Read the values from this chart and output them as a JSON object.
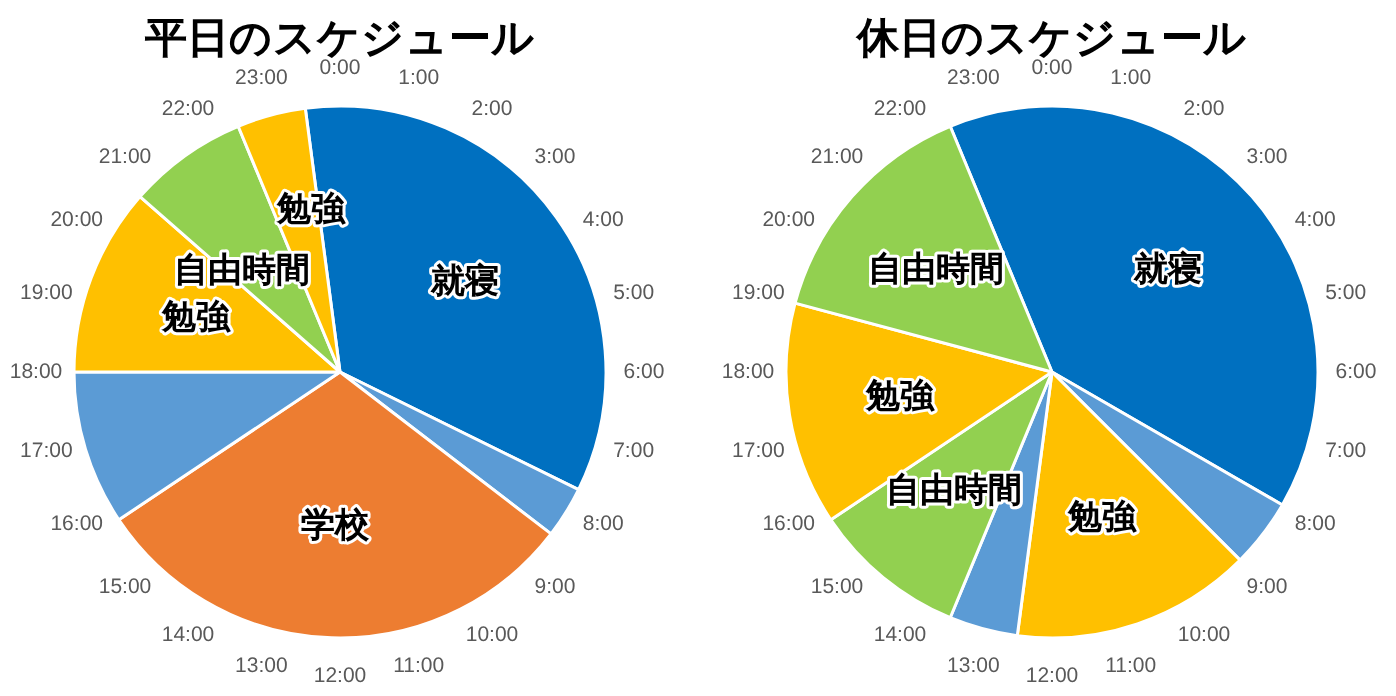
{
  "chart_data": [
    {
      "type": "pie",
      "title": "平日のスケジュール",
      "categories": [
        "就寝",
        null,
        "学校",
        null,
        "勉強",
        "自由時間",
        "勉強"
      ],
      "values": [
        34.375,
        3.125,
        30.208,
        9.375,
        11.458,
        7.292,
        4.167
      ],
      "colors": [
        "#0070c0",
        "#5b9bd5",
        "#ed7d31",
        "#5b9bd5",
        "#ffc000",
        "#92d050",
        "#ffc000"
      ],
      "annotations": [
        "0:00",
        "1:00",
        "2:00",
        "3:00",
        "4:00",
        "5:00",
        "6:00",
        "7:00",
        "8:00",
        "9:00",
        "10:00",
        "11:00",
        "12:00",
        "13:00",
        "14:00",
        "15:00",
        "16:00",
        "17:00",
        "18:00",
        "19:00",
        "20:00",
        "21:00",
        "22:00",
        "23:00"
      ]
    },
    {
      "type": "pie",
      "title": "休日のスケジュール",
      "categories": [
        "就寝",
        null,
        "勉強",
        null,
        "自由時間",
        "勉強",
        "自由時間"
      ],
      "values": [
        39.583,
        4.167,
        14.583,
        4.167,
        9.375,
        13.542,
        14.583
      ],
      "colors": [
        "#0070c0",
        "#5b9bd5",
        "#ffc000",
        "#5b9bd5",
        "#92d050",
        "#ffc000",
        "#92d050"
      ],
      "annotations": [
        "0:00",
        "1:00",
        "2:00",
        "3:00",
        "4:00",
        "5:00",
        "6:00",
        "7:00",
        "8:00",
        "9:00",
        "10:00",
        "11:00",
        "12:00",
        "13:00",
        "14:00",
        "15:00",
        "16:00",
        "17:00",
        "18:00",
        "19:00",
        "20:00",
        "21:00",
        "22:00",
        "23:00"
      ]
    }
  ]
}
